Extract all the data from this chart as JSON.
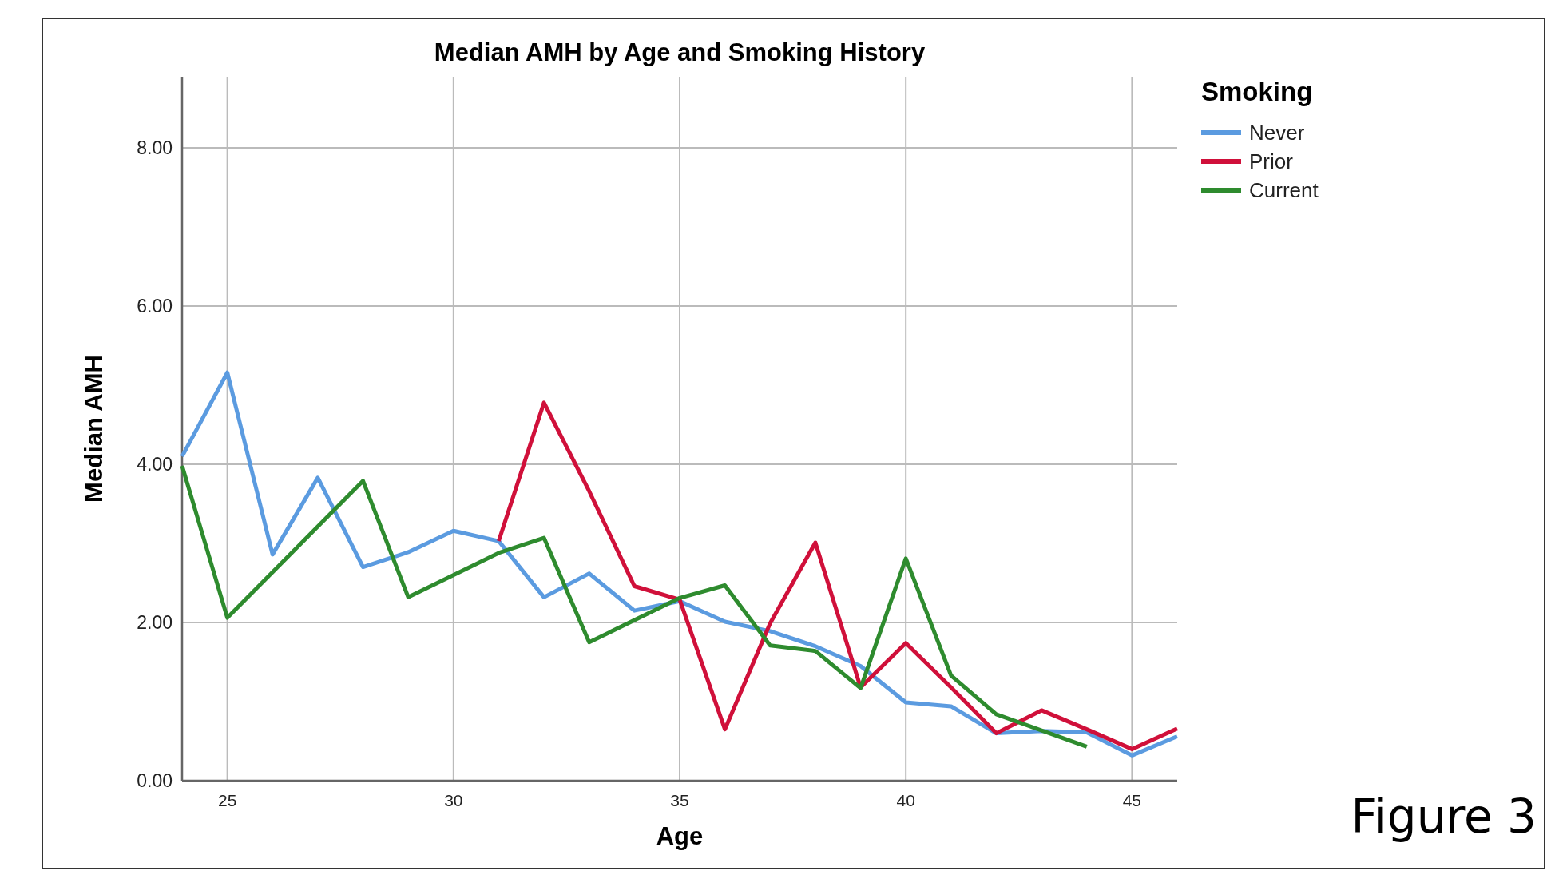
{
  "chart_data": {
    "type": "line",
    "title": "Median AMH by Age and Smoking History",
    "xlabel": "Age",
    "ylabel": "Median AMH",
    "legend_title": "Smoking",
    "legend": "top right",
    "grid": true,
    "line_style": "solid",
    "marker": "none",
    "xlim": [
      24,
      46
    ],
    "xticks": [
      25,
      30,
      35,
      40,
      45
    ],
    "ylim": [
      0,
      8.9
    ],
    "yticks": [
      {
        "value": 0,
        "label": "0.00"
      },
      {
        "value": 2,
        "label": "2.00"
      },
      {
        "value": 4,
        "label": "4.00"
      },
      {
        "value": 6,
        "label": "6.00"
      },
      {
        "value": 8,
        "label": "8.00"
      }
    ],
    "annotations": [
      "Figure 3"
    ],
    "series": [
      {
        "name": "Never",
        "color": "#5b9be0",
        "x": [
          24,
          25,
          26,
          27,
          28,
          29,
          30,
          31,
          32,
          33,
          34,
          35,
          36,
          37,
          38,
          39,
          40,
          41,
          42,
          43,
          44,
          45,
          46
        ],
        "values": [
          4.1,
          5.16,
          2.86,
          3.83,
          2.7,
          2.89,
          3.16,
          3.03,
          2.32,
          2.62,
          2.15,
          2.27,
          2.01,
          1.89,
          1.7,
          1.45,
          0.99,
          0.94,
          0.6,
          0.63,
          0.61,
          0.32,
          0.56
        ]
      },
      {
        "name": "Prior",
        "color": "#d0103a",
        "x": [
          31,
          32,
          33,
          34,
          35,
          36,
          37,
          38,
          39,
          40,
          41,
          42,
          43,
          44,
          45,
          46
        ],
        "values": [
          3.03,
          4.78,
          3.66,
          2.46,
          2.29,
          0.65,
          1.99,
          3.01,
          1.18,
          1.74,
          1.18,
          0.6,
          0.89,
          0.65,
          0.4,
          0.66
        ]
      },
      {
        "name": "Current",
        "color": "#2e8b2e",
        "x": [
          24,
          25,
          28,
          29,
          31,
          32,
          33,
          35,
          36,
          37,
          38,
          39,
          40,
          41,
          42,
          44
        ],
        "values": [
          3.98,
          2.06,
          3.79,
          2.32,
          2.88,
          3.07,
          1.75,
          2.31,
          2.47,
          1.71,
          1.64,
          1.17,
          2.81,
          1.33,
          0.84,
          0.43
        ]
      }
    ]
  }
}
